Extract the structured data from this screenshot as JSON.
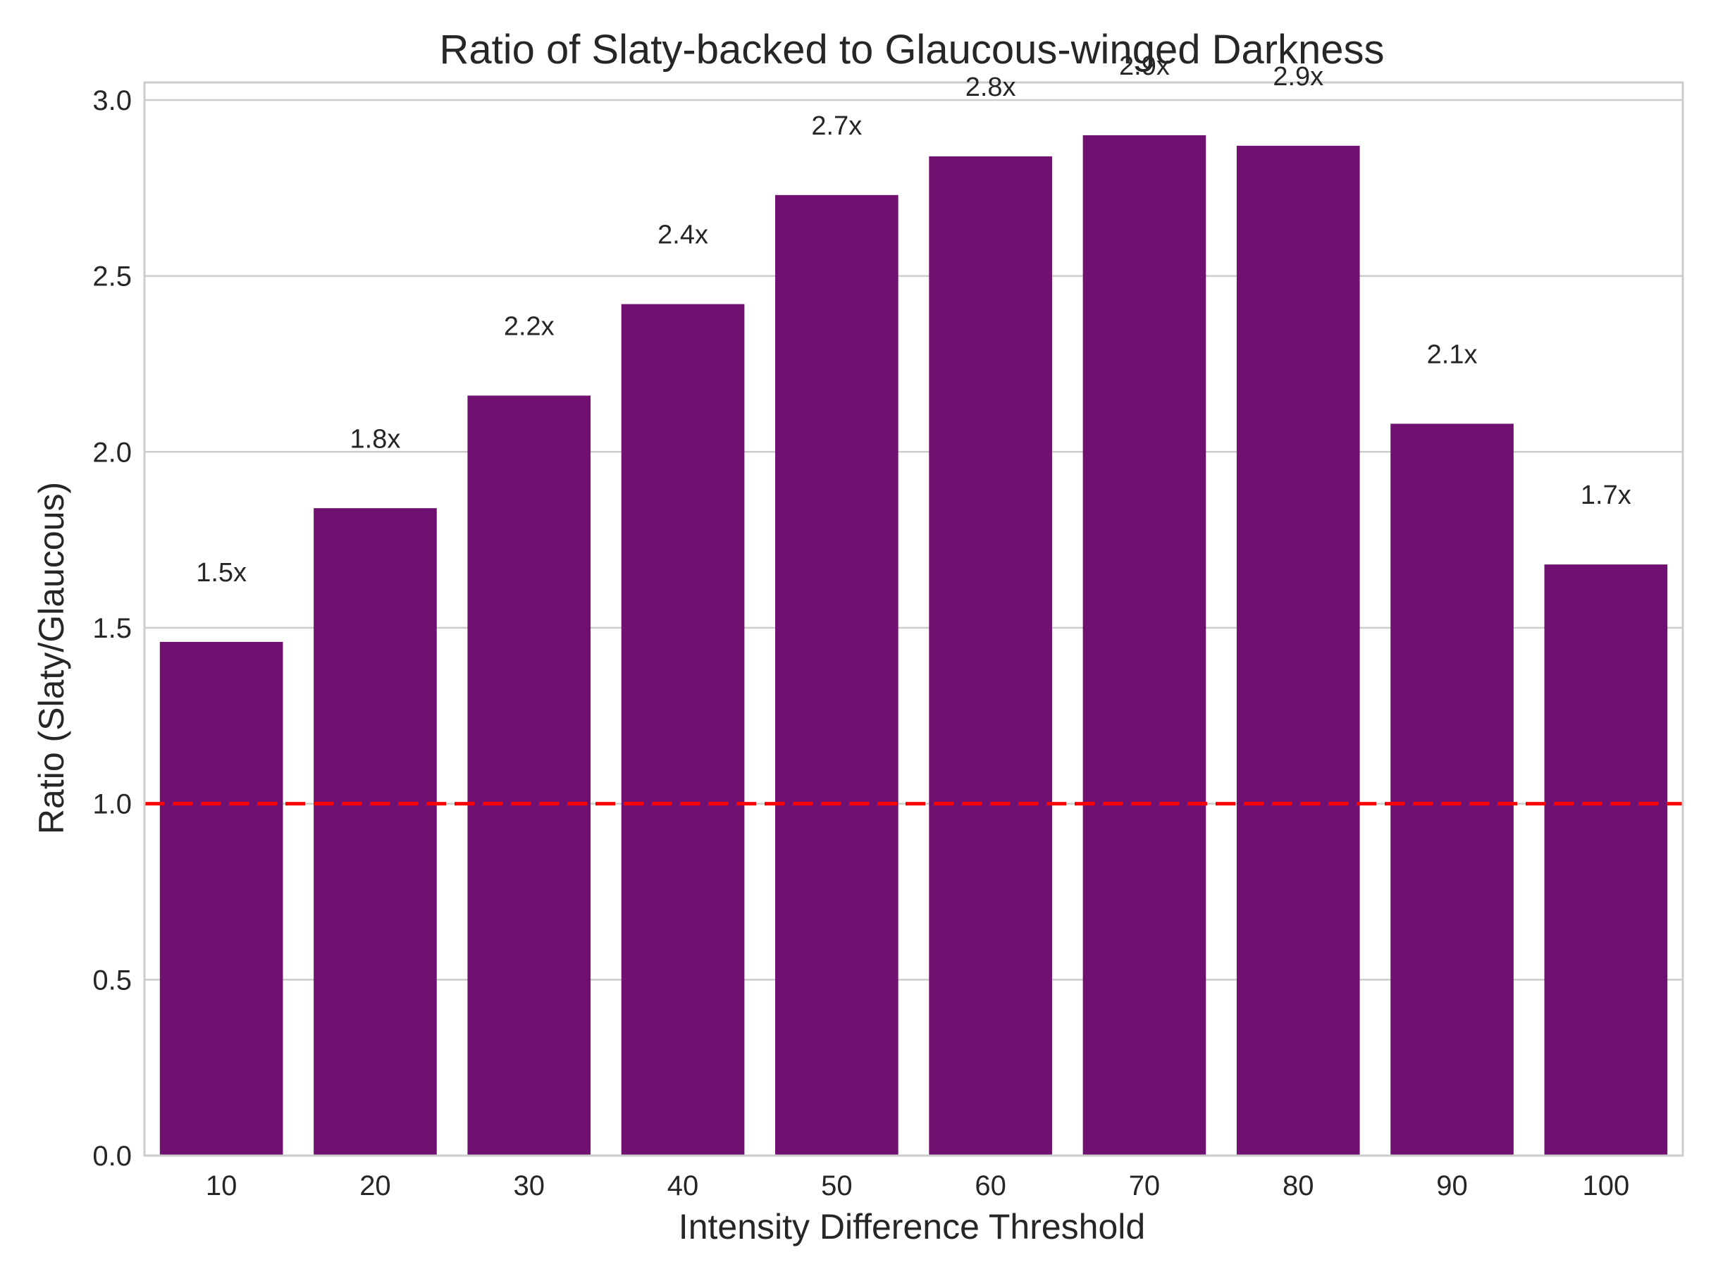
{
  "chart_data": {
    "type": "bar",
    "title": "Ratio of Slaty-backed to Glaucous-winged Darkness",
    "xlabel": "Intensity Difference Threshold",
    "ylabel": "Ratio (Slaty/Glaucous)",
    "categories": [
      "10",
      "20",
      "30",
      "40",
      "50",
      "60",
      "70",
      "80",
      "90",
      "100"
    ],
    "values": [
      1.46,
      1.84,
      2.16,
      2.42,
      2.73,
      2.84,
      2.9,
      2.87,
      2.08,
      1.68
    ],
    "data_labels": [
      "1.5x",
      "1.8x",
      "2.2x",
      "2.4x",
      "2.7x",
      "2.8x",
      "2.9x",
      "2.9x",
      "2.1x",
      "1.7x"
    ],
    "yticks": [
      "0.0",
      "0.5",
      "1.0",
      "1.5",
      "2.0",
      "2.5",
      "3.0"
    ],
    "ylim": [
      0,
      3.05
    ],
    "reference_line": {
      "y": 1.0,
      "style": "dashed",
      "color": "#ff0000"
    },
    "grid": "horizontal",
    "legend": "none",
    "colors": {
      "bar": "#701070",
      "grid": "#cccccc",
      "axes": "#cccccc",
      "text": "#262626"
    }
  }
}
